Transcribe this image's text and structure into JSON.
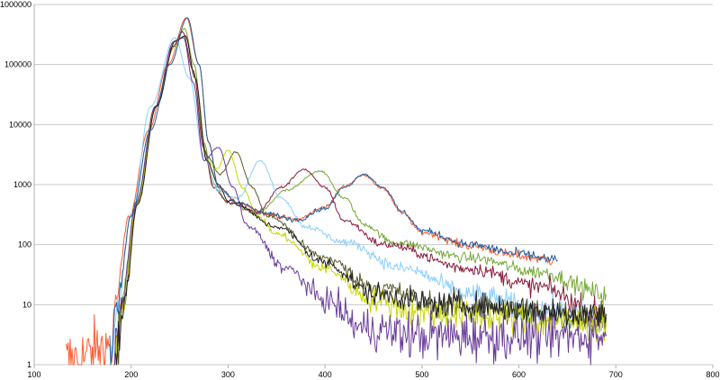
{
  "chart_data": {
    "type": "line",
    "title": "",
    "xlabel": "",
    "ylabel": "",
    "xlim": [
      100,
      800
    ],
    "ylim": [
      1,
      1000000
    ],
    "yscale": "log",
    "grid": "horizontal",
    "legend": "none",
    "x_ticks": [
      "100",
      "200",
      "300",
      "400",
      "500",
      "600",
      "700",
      "800"
    ],
    "y_ticks": [
      "1",
      "10",
      "100",
      "1000",
      "10000",
      "100000",
      "1000000"
    ],
    "series": [
      {
        "color": "#ff5b2e",
        "points": [
          [
            133,
            1
          ],
          [
            178,
            2
          ],
          [
            179,
            1
          ],
          [
            183,
            10
          ],
          [
            198,
            300
          ],
          [
            218,
            8000
          ],
          [
            238,
            100000
          ],
          [
            257,
            600000
          ],
          [
            270,
            100000
          ],
          [
            280,
            5000
          ],
          [
            290,
            900
          ],
          [
            310,
            500
          ],
          [
            340,
            320
          ],
          [
            370,
            260
          ],
          [
            400,
            420
          ],
          [
            420,
            950
          ],
          [
            440,
            1450
          ],
          [
            460,
            850
          ],
          [
            480,
            330
          ],
          [
            500,
            160
          ],
          [
            550,
            95
          ],
          [
            600,
            65
          ],
          [
            635,
            55
          ]
        ]
      },
      {
        "color": "#77a83a",
        "points": [
          [
            182,
            1
          ],
          [
            190,
            10
          ],
          [
            205,
            500
          ],
          [
            225,
            20000
          ],
          [
            245,
            200000
          ],
          [
            255,
            400000
          ],
          [
            265,
            100000
          ],
          [
            275,
            5000
          ],
          [
            285,
            1000
          ],
          [
            300,
            500
          ],
          [
            330,
            330
          ],
          [
            360,
            800
          ],
          [
            395,
            1700
          ],
          [
            420,
            600
          ],
          [
            440,
            220
          ],
          [
            470,
            110
          ],
          [
            550,
            60
          ],
          [
            620,
            35
          ],
          [
            690,
            15
          ]
        ]
      },
      {
        "color": "#8b1a3a",
        "points": [
          [
            183,
            1
          ],
          [
            191,
            10
          ],
          [
            206,
            500
          ],
          [
            225,
            20000
          ],
          [
            243,
            200000
          ],
          [
            253,
            350000
          ],
          [
            264,
            80000
          ],
          [
            275,
            4000
          ],
          [
            285,
            900
          ],
          [
            300,
            500
          ],
          [
            330,
            350
          ],
          [
            355,
            900
          ],
          [
            378,
            1800
          ],
          [
            400,
            900
          ],
          [
            420,
            250
          ],
          [
            460,
            100
          ],
          [
            550,
            40
          ],
          [
            620,
            20
          ],
          [
            690,
            6
          ]
        ]
      },
      {
        "color": "#8ccfff",
        "points": [
          [
            178,
            1
          ],
          [
            186,
            10
          ],
          [
            200,
            300
          ],
          [
            220,
            20000
          ],
          [
            245,
            280000
          ],
          [
            260,
            60000
          ],
          [
            275,
            3000
          ],
          [
            290,
            800
          ],
          [
            310,
            600
          ],
          [
            333,
            2500
          ],
          [
            355,
            600
          ],
          [
            380,
            200
          ],
          [
            420,
            110
          ],
          [
            480,
            40
          ],
          [
            550,
            15
          ],
          [
            620,
            8
          ],
          [
            690,
            5
          ]
        ]
      },
      {
        "color": "#5a5a2a",
        "points": [
          [
            184,
            1
          ],
          [
            192,
            10
          ],
          [
            207,
            500
          ],
          [
            226,
            20000
          ],
          [
            246,
            250000
          ],
          [
            256,
            300000
          ],
          [
            266,
            60000
          ],
          [
            278,
            3000
          ],
          [
            292,
            1500
          ],
          [
            308,
            3500
          ],
          [
            325,
            900
          ],
          [
            340,
            300
          ],
          [
            400,
            60
          ],
          [
            450,
            20
          ],
          [
            520,
            10
          ],
          [
            690,
            6
          ]
        ]
      },
      {
        "color": "#c8d800",
        "points": [
          [
            183,
            1
          ],
          [
            191,
            10
          ],
          [
            206,
            500
          ],
          [
            226,
            20000
          ],
          [
            246,
            250000
          ],
          [
            256,
            300000
          ],
          [
            266,
            60000
          ],
          [
            278,
            2500
          ],
          [
            288,
            1800
          ],
          [
            300,
            3800
          ],
          [
            315,
            900
          ],
          [
            330,
            300
          ],
          [
            350,
            150
          ],
          [
            400,
            40
          ],
          [
            450,
            12
          ],
          [
            500,
            7
          ],
          [
            690,
            5
          ]
        ]
      },
      {
        "color": "#6a3d9a",
        "points": [
          [
            182,
            1
          ],
          [
            190,
            10
          ],
          [
            205,
            500
          ],
          [
            225,
            20000
          ],
          [
            244,
            240000
          ],
          [
            254,
            280000
          ],
          [
            264,
            50000
          ],
          [
            275,
            2500
          ],
          [
            290,
            4200
          ],
          [
            305,
            900
          ],
          [
            320,
            200
          ],
          [
            360,
            40
          ],
          [
            400,
            12
          ],
          [
            440,
            4
          ],
          [
            500,
            3
          ],
          [
            690,
            3
          ]
        ]
      },
      {
        "color": "#222222",
        "points": [
          [
            184,
            1
          ],
          [
            192,
            10
          ],
          [
            207,
            500
          ],
          [
            226,
            20000
          ],
          [
            246,
            250000
          ],
          [
            256,
            300000
          ],
          [
            266,
            60000
          ],
          [
            278,
            2500
          ],
          [
            290,
            1000
          ],
          [
            300,
            550
          ],
          [
            350,
            200
          ],
          [
            400,
            50
          ],
          [
            450,
            15
          ],
          [
            520,
            10
          ],
          [
            690,
            7
          ]
        ]
      },
      {
        "color": "#1f5fa0",
        "points": [
          [
            178,
            1
          ],
          [
            185,
            10
          ],
          [
            200,
            300
          ],
          [
            220,
            8000
          ],
          [
            240,
            100000
          ],
          [
            258,
            600000
          ],
          [
            270,
            100000
          ],
          [
            280,
            5000
          ],
          [
            290,
            900
          ],
          [
            310,
            500
          ],
          [
            340,
            330
          ],
          [
            370,
            260
          ],
          [
            400,
            400
          ],
          [
            420,
            900
          ],
          [
            440,
            1500
          ],
          [
            460,
            900
          ],
          [
            480,
            350
          ],
          [
            500,
            170
          ],
          [
            550,
            100
          ],
          [
            600,
            70
          ],
          [
            640,
            55
          ]
        ]
      }
    ]
  }
}
